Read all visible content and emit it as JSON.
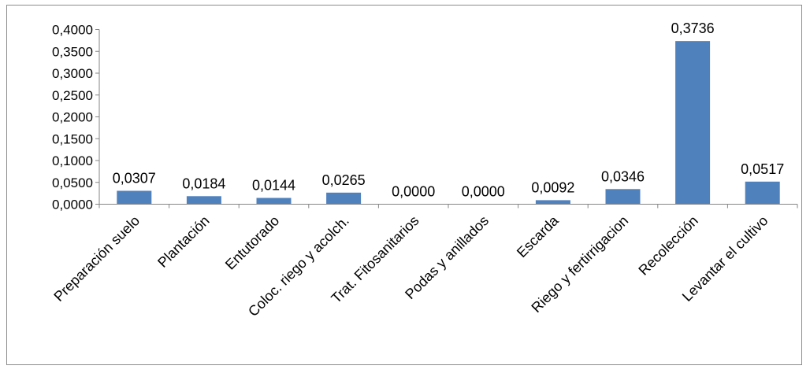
{
  "chart_data": {
    "type": "bar",
    "title": "",
    "xlabel": "",
    "ylabel": "",
    "categories": [
      "Preparación suelo",
      "Plantación",
      "Entutorado",
      "Coloc. riego y acolch.",
      "Trat. Fitosanitarios",
      "Podas y anillados",
      "Escarda",
      "Riego y fertirrigacion",
      "Recolección",
      "Levantar el cultivo"
    ],
    "values": [
      0.0307,
      0.0184,
      0.0144,
      0.0265,
      0.0,
      0.0,
      0.0092,
      0.0346,
      0.3736,
      0.0517
    ],
    "data_labels": [
      "0,0307",
      "0,0184",
      "0,0144",
      "0,0265",
      "0,0000",
      "0,0000",
      "0,0092",
      "0,0346",
      "0,3736",
      "0,0517"
    ],
    "ylim": [
      0,
      0.4
    ],
    "yticks": [
      0,
      0.05,
      0.1,
      0.15,
      0.2,
      0.25,
      0.3,
      0.35,
      0.4
    ],
    "ytick_labels": [
      "0,0000",
      "0,0500",
      "0,1000",
      "0,1500",
      "0,2000",
      "0,2500",
      "0,3000",
      "0,3500",
      "0,4000"
    ],
    "grid": false,
    "legend": "none",
    "bar_color": "#4f81bd",
    "axis_color": "#868686"
  }
}
